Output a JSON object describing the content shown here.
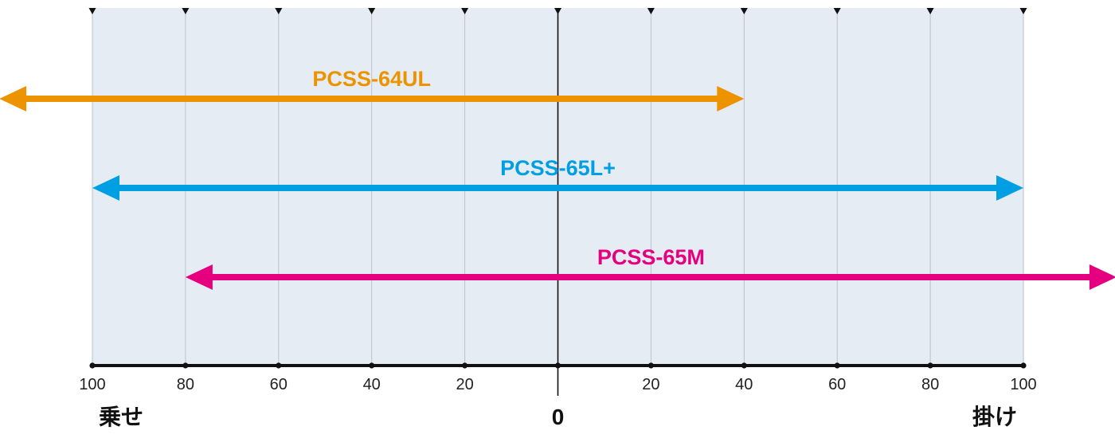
{
  "colors": {
    "background_band": "#e6ecf3",
    "grid": "#b9c2cc",
    "axis": "#111111",
    "tick_text": "#222222"
  },
  "chart_data": {
    "type": "range",
    "xlim": [
      -100,
      100
    ],
    "grid": true,
    "x_ticks": [
      {
        "value": -100,
        "label": "100"
      },
      {
        "value": -80,
        "label": "80"
      },
      {
        "value": -60,
        "label": "60"
      },
      {
        "value": -40,
        "label": "40"
      },
      {
        "value": -20,
        "label": "20"
      },
      {
        "value": 0,
        "label": ""
      },
      {
        "value": 20,
        "label": "20"
      },
      {
        "value": 40,
        "label": "40"
      },
      {
        "value": 60,
        "label": "60"
      },
      {
        "value": 80,
        "label": "80"
      },
      {
        "value": 100,
        "label": "100"
      }
    ],
    "left_label": "乗せ",
    "center_label": "0",
    "right_label": "掛け",
    "series": [
      {
        "name": "PCSS-64UL",
        "start": -120,
        "end": 40,
        "color": "#ee9300"
      },
      {
        "name": "PCSS-65L+",
        "start": -100,
        "end": 100,
        "color": "#009fe3"
      },
      {
        "name": "PCSS-65M",
        "start": -80,
        "end": 120,
        "color": "#e4007f"
      }
    ]
  }
}
